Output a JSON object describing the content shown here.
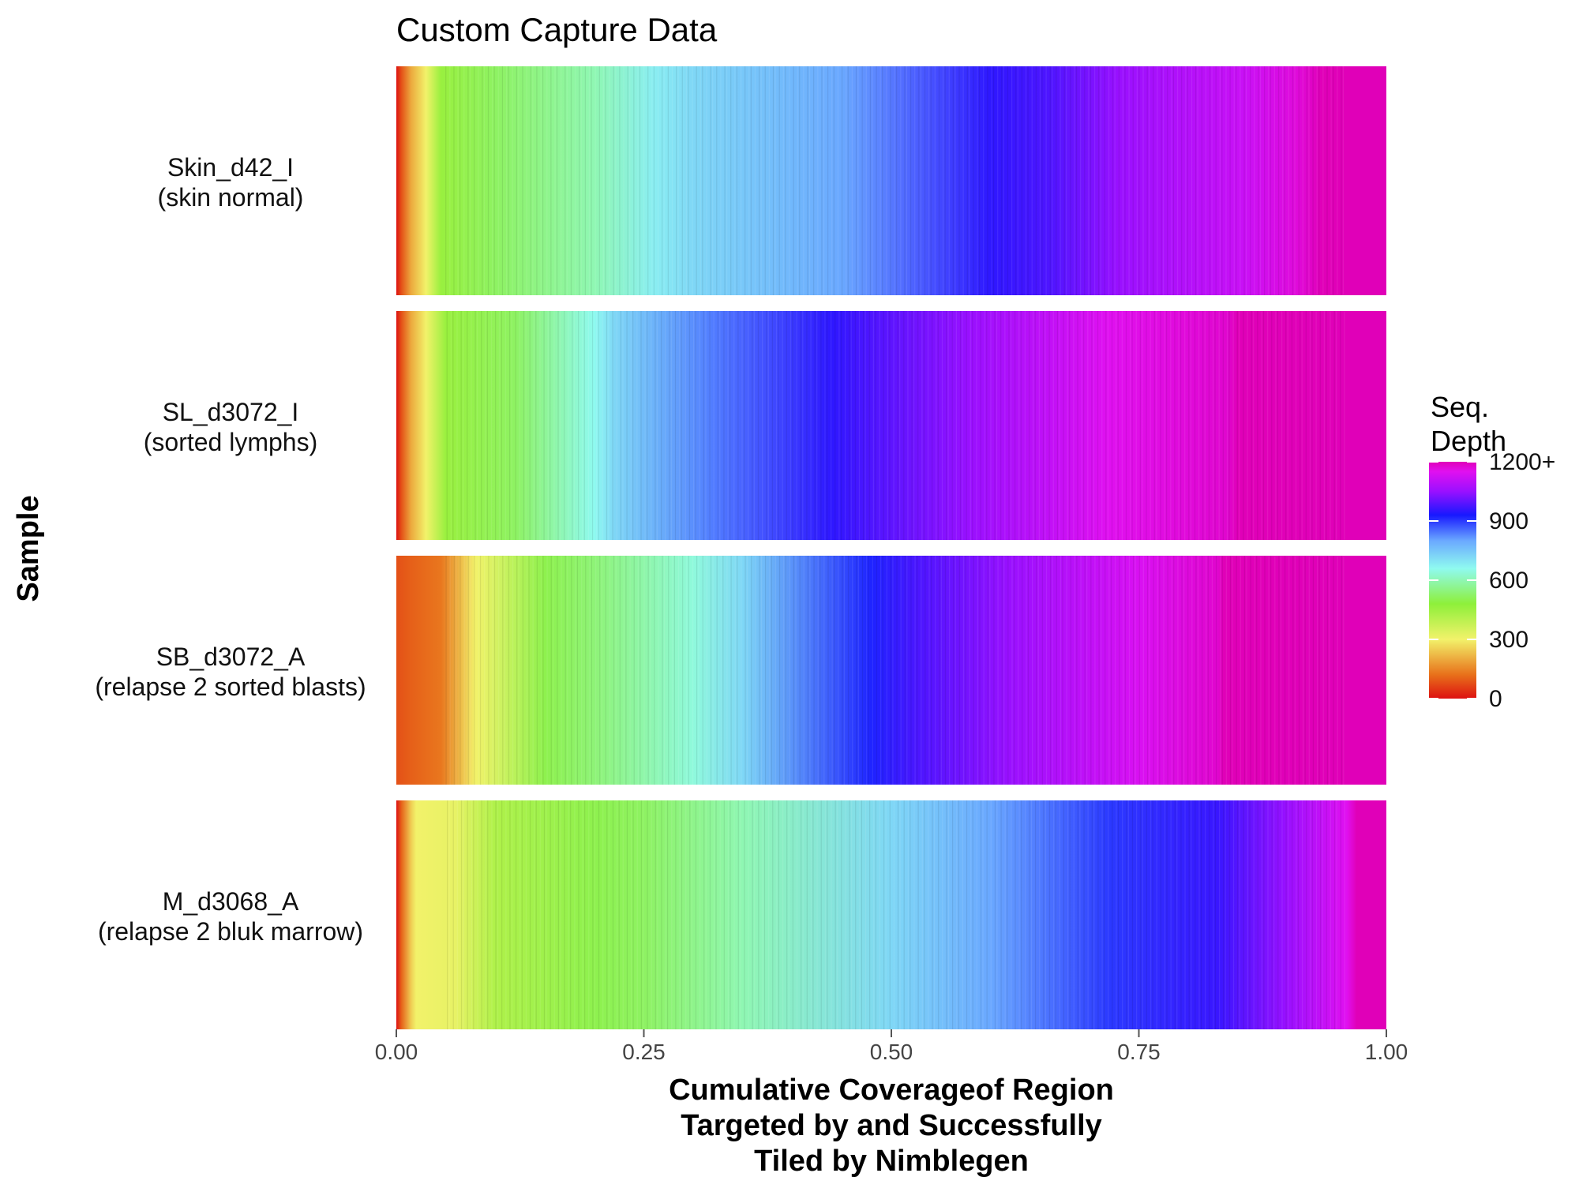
{
  "chart_data": {
    "type": "heatmap",
    "title": "Custom Capture Data",
    "xlabel": "Cumulative Coverageof Region\nTargeted by and Successfully\nTiled by Nimblegen",
    "ylabel": "Sample",
    "xlim": [
      0,
      1
    ],
    "x_ticks": [
      "0.00",
      "0.25",
      "0.50",
      "0.75",
      "1.00"
    ],
    "x_tick_values": [
      0,
      0.25,
      0.5,
      0.75,
      1.0
    ],
    "legend": {
      "title": "Seq.\nDepth",
      "position": "right",
      "range": [
        0,
        1200
      ],
      "labels": [
        "1200+",
        "900",
        "600",
        "300",
        "0"
      ],
      "label_values": [
        1200,
        900,
        600,
        300,
        0
      ],
      "colors": [
        "#dd1111",
        "#e8701a",
        "#f2f26a",
        "#8ef03a",
        "#8ffaf0",
        "#6aa8ff",
        "#1818ff",
        "#9a10ff",
        "#e010f0",
        "#e000b8"
      ],
      "color_stops": [
        0,
        120,
        300,
        480,
        660,
        800,
        930,
        1050,
        1150,
        1200
      ]
    },
    "series": [
      {
        "name": "Skin_d42_I",
        "label_lines": [
          "Skin_d42_I",
          "(skin normal)"
        ],
        "x": [
          0.0,
          0.005,
          0.015,
          0.03,
          0.045,
          0.1,
          0.2,
          0.26,
          0.3,
          0.45,
          0.6,
          0.66,
          0.73,
          0.86,
          0.91,
          0.935,
          1.0
        ],
        "depth": [
          0,
          80,
          200,
          300,
          460,
          520,
          600,
          680,
          720,
          800,
          950,
          980,
          1050,
          1120,
          1170,
          1200,
          1200
        ]
      },
      {
        "name": "SL_d3072_I",
        "label_lines": [
          "SL_d3072_I",
          "(sorted lymphs)"
        ],
        "x": [
          0.0,
          0.005,
          0.015,
          0.03,
          0.05,
          0.12,
          0.2,
          0.22,
          0.32,
          0.44,
          0.48,
          0.58,
          0.72,
          0.84,
          0.85,
          1.0
        ],
        "depth": [
          0,
          80,
          200,
          300,
          460,
          520,
          660,
          720,
          840,
          950,
          980,
          1050,
          1150,
          1180,
          1200,
          1200
        ]
      },
      {
        "name": "SB_d3072_A",
        "label_lines": [
          "SB_d3072_A",
          "(relapse 2 sorted blasts)"
        ],
        "x": [
          0.0,
          0.015,
          0.045,
          0.06,
          0.08,
          0.15,
          0.2,
          0.3,
          0.35,
          0.48,
          0.53,
          0.62,
          0.75,
          0.83,
          0.835,
          1.0
        ],
        "depth": [
          80,
          100,
          130,
          200,
          300,
          500,
          540,
          640,
          720,
          920,
          980,
          1050,
          1140,
          1180,
          1200,
          1200
        ]
      },
      {
        "name": "M_d3068_A",
        "label_lines": [
          "M_d3068_A",
          "(relapse 2 bluk marrow)"
        ],
        "x": [
          0.0,
          0.005,
          0.015,
          0.02,
          0.06,
          0.1,
          0.2,
          0.25,
          0.35,
          0.5,
          0.6,
          0.72,
          0.83,
          0.9,
          0.96,
          0.97,
          1.0
        ],
        "depth": [
          0,
          100,
          250,
          300,
          320,
          420,
          500,
          520,
          600,
          720,
          800,
          900,
          960,
          1050,
          1150,
          1200,
          1200
        ]
      }
    ]
  }
}
